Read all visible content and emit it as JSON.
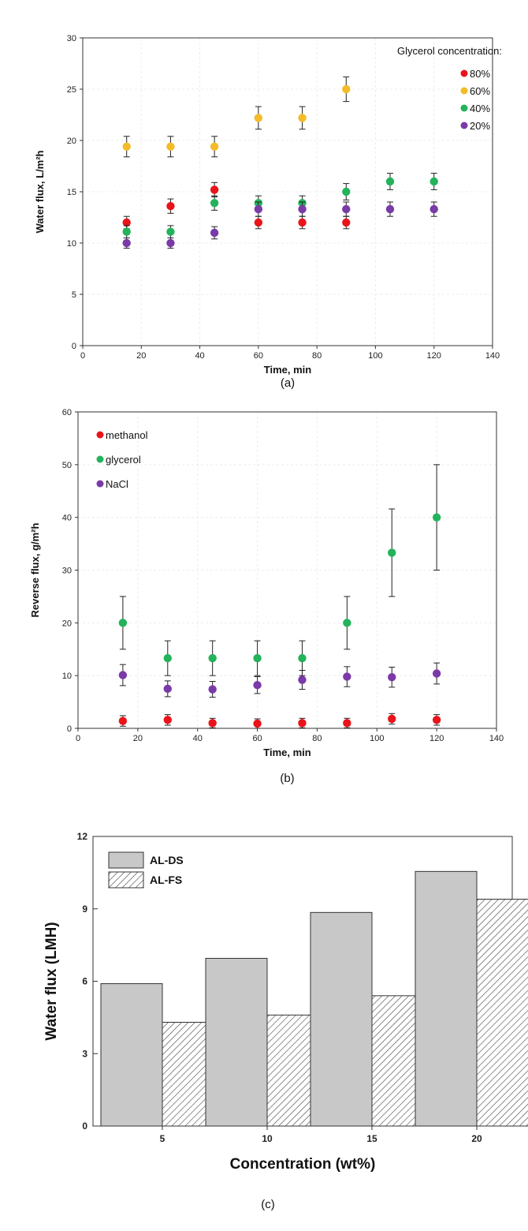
{
  "charts": [
    {
      "id": "a",
      "panel_label": "(a)",
      "xlabel": "Time, min",
      "ylabel": "Water flux, L/m²h",
      "legend_title": "Glycerol concentration:"
    },
    {
      "id": "b",
      "panel_label": "(b)",
      "xlabel": "Time, min",
      "ylabel": "Reverse flux, g/m²h",
      "legend_title": ""
    },
    {
      "id": "c",
      "panel_label": "(c)",
      "xlabel": "Concentration (wt%)",
      "ylabel": "Water flux (LMH)",
      "legend_title": ""
    }
  ],
  "chart_data": [
    {
      "type": "scatter",
      "title": "",
      "xlabel": "Time, min",
      "ylabel": "Water flux, L/m²h",
      "xlim": [
        0,
        140
      ],
      "ylim": [
        0,
        30
      ],
      "xticks": [
        0,
        20,
        40,
        60,
        80,
        100,
        120,
        140
      ],
      "yticks": [
        0,
        5,
        10,
        15,
        20,
        25,
        30
      ],
      "legend_title": "Glycerol concentration:",
      "legend_position": "top-right",
      "grid": true,
      "series": [
        {
          "name": "80%",
          "color": "#e8141a",
          "x": [
            15,
            30,
            45,
            60,
            75,
            90
          ],
          "y": [
            12.0,
            13.6,
            15.2,
            12.0,
            12.0,
            12.0
          ],
          "err": [
            0.6,
            0.7,
            0.7,
            0.6,
            0.6,
            0.6
          ]
        },
        {
          "name": "60%",
          "color": "#f5bb28",
          "x": [
            15,
            30,
            45,
            60,
            75,
            90
          ],
          "y": [
            19.4,
            19.4,
            19.4,
            22.2,
            22.2,
            25.0
          ],
          "err": [
            1.0,
            1.0,
            1.0,
            1.1,
            1.1,
            1.2
          ]
        },
        {
          "name": "40%",
          "color": "#23b35b",
          "x": [
            15,
            30,
            45,
            60,
            75,
            90,
            105,
            120
          ],
          "y": [
            11.1,
            11.1,
            13.9,
            13.9,
            13.9,
            15.0,
            16.0,
            16.0
          ],
          "err": [
            0.6,
            0.6,
            0.7,
            0.7,
            0.7,
            0.8,
            0.8,
            0.8
          ]
        },
        {
          "name": "20%",
          "color": "#7a3aa8",
          "x": [
            15,
            30,
            45,
            60,
            75,
            90,
            105,
            120
          ],
          "y": [
            10.0,
            10.0,
            11.0,
            13.3,
            13.3,
            13.3,
            13.3,
            13.3
          ],
          "err": [
            0.5,
            0.5,
            0.6,
            0.7,
            0.7,
            0.7,
            0.7,
            0.7
          ]
        }
      ]
    },
    {
      "type": "scatter",
      "title": "",
      "xlabel": "Time, min",
      "ylabel": "Reverse flux, g/m²h",
      "xlim": [
        0,
        140
      ],
      "ylim": [
        0,
        60
      ],
      "xticks": [
        0,
        20,
        40,
        60,
        80,
        100,
        120,
        140
      ],
      "yticks": [
        0,
        10,
        20,
        30,
        40,
        50,
        60
      ],
      "legend_position": "top-left",
      "grid": true,
      "series": [
        {
          "name": "methanol",
          "color": "#e8141a",
          "x": [
            15,
            30,
            45,
            60,
            75,
            90,
            105,
            120
          ],
          "y": [
            1.4,
            1.6,
            1.0,
            0.9,
            1.0,
            1.0,
            1.8,
            1.6
          ],
          "err": [
            1.0,
            1.0,
            0.9,
            0.9,
            0.9,
            0.9,
            1.0,
            1.0
          ]
        },
        {
          "name": "glycerol",
          "color": "#23b35b",
          "x": [
            15,
            30,
            45,
            60,
            75,
            90,
            105,
            120
          ],
          "y": [
            20.0,
            13.3,
            13.3,
            13.3,
            13.3,
            20.0,
            33.3,
            40.0
          ],
          "err": [
            5.0,
            3.3,
            3.3,
            3.3,
            3.3,
            5.0,
            8.3,
            10.0
          ]
        },
        {
          "name": "NaCl",
          "color": "#7a3aa8",
          "x": [
            15,
            30,
            45,
            60,
            75,
            90,
            105,
            120
          ],
          "y": [
            10.1,
            7.5,
            7.4,
            8.2,
            9.2,
            9.8,
            9.7,
            10.4
          ],
          "err": [
            2.0,
            1.5,
            1.5,
            1.6,
            1.8,
            1.9,
            1.9,
            2.0
          ]
        }
      ]
    },
    {
      "type": "bar",
      "title": "",
      "xlabel": "Concentration (wt%)",
      "ylabel": "Water flux (LMH)",
      "categories": [
        "5",
        "10",
        "15",
        "20"
      ],
      "ylim": [
        0,
        12
      ],
      "yticks": [
        0,
        3,
        6,
        9,
        12
      ],
      "legend_position": "top-left",
      "grid": false,
      "series": [
        {
          "name": "AL-DS",
          "color": "#c8c8c8",
          "pattern": "solid",
          "values": [
            5.9,
            6.95,
            8.85,
            10.55
          ]
        },
        {
          "name": "AL-FS",
          "color": "#ffffff",
          "pattern": "hatched",
          "values": [
            4.3,
            4.6,
            5.4,
            9.4
          ]
        }
      ]
    }
  ]
}
